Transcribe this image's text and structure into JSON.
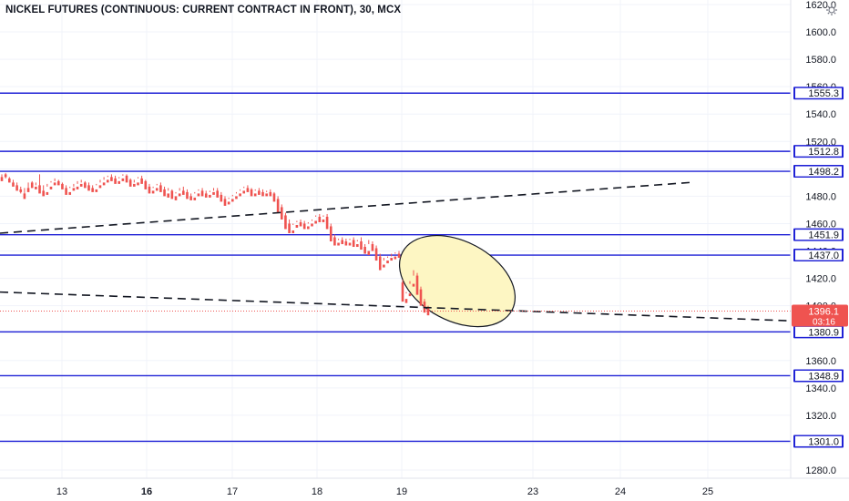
{
  "title": "NICKEL FUTURES (CONTINUOUS: CURRENT CONTRACT IN FRONT), 30, MCX",
  "colors": {
    "up": "#26a69a",
    "down": "#ef5350",
    "level_line": "#1f21d6",
    "ellipse_fill": "#fdf6c3",
    "price_tag": "#ef5350",
    "grid": "#f0f3fa",
    "axis_text": "#131722"
  },
  "chart_data": {
    "type": "candlestick",
    "symbol": "NICKEL FUTURES (CONTINUOUS: CURRENT CONTRACT IN FRONT)",
    "interval": "30",
    "exchange": "MCX",
    "ylim": [
      1275,
      1625
    ],
    "x_ticks": [
      "13",
      "16",
      "17",
      "18",
      "19",
      "23",
      "24",
      "25"
    ],
    "y_ticks": [
      1280.0,
      1300.0,
      1320.0,
      1340.0,
      1360.0,
      1380.0,
      1400.0,
      1420.0,
      1440.0,
      1460.0,
      1480.0,
      1500.0,
      1520.0,
      1540.0,
      1560.0,
      1580.0,
      1600.0,
      1620.0
    ],
    "y_tick_labels": [
      "1280.0",
      "1300.0",
      "1320.0",
      "1340.0",
      "1360.0",
      "1380.0",
      "1400.0",
      "1420.0",
      "1440.0",
      "1460.0",
      "1480.0",
      "1500.0",
      "1520.0",
      "1540.0",
      "1560.0",
      "1580.0",
      "1600.0",
      "1620.0"
    ],
    "horizontal_levels": [
      {
        "label": "1555.3",
        "value": 1555.3
      },
      {
        "label": "1512.8",
        "value": 1512.8
      },
      {
        "label": "1498.2",
        "value": 1498.2
      },
      {
        "label": "1451.9",
        "value": 1451.9
      },
      {
        "label": "1437.0",
        "value": 1437.0
      },
      {
        "label": "1380.9",
        "value": 1380.9
      },
      {
        "label": "1348.9",
        "value": 1348.9
      },
      {
        "label": "1301.0",
        "value": 1301.0
      }
    ],
    "current_price": {
      "label": "1396.1",
      "value": 1396.1,
      "countdown": "03:16"
    },
    "trendlines": [
      {
        "start": {
          "x": "Sep 12",
          "y": 1453
        },
        "end": {
          "x": "Sep 25",
          "y": 1490
        },
        "style": "dashed"
      },
      {
        "start": {
          "x": "Sep 12",
          "y": 1410
        },
        "end": {
          "x": "Sep 26",
          "y": 1389
        },
        "style": "dashed"
      }
    ],
    "highlight_ellipse": {
      "center": {
        "x": "Sep 20",
        "y": 1418
      },
      "x_range": [
        "Sep 19",
        "Sep 22"
      ],
      "y_range": [
        1389,
        1447
      ]
    },
    "candles": [
      [
        1494,
        1496,
        1492,
        1491
      ],
      [
        1496,
        1497,
        1493,
        1494
      ],
      [
        1493,
        1494,
        1490,
        1490
      ],
      [
        1490,
        1492,
        1488,
        1487
      ],
      [
        1488,
        1490,
        1485,
        1484
      ],
      [
        1485,
        1487,
        1482,
        1483
      ],
      [
        1482,
        1486,
        1480,
        1478
      ],
      [
        1486,
        1490,
        1485,
        1483
      ],
      [
        1490,
        1491,
        1487,
        1486
      ],
      [
        1487,
        1490,
        1488,
        1485
      ],
      [
        1488,
        1496,
        1484,
        1482
      ],
      [
        1484,
        1488,
        1483,
        1480
      ],
      [
        1483,
        1489,
        1487,
        1481
      ],
      [
        1487,
        1491,
        1490,
        1485
      ],
      [
        1490,
        1493,
        1491,
        1488
      ],
      [
        1491,
        1492,
        1489,
        1488
      ],
      [
        1489,
        1490,
        1486,
        1485
      ],
      [
        1486,
        1488,
        1483,
        1481
      ],
      [
        1483,
        1487,
        1486,
        1481
      ],
      [
        1486,
        1489,
        1487,
        1484
      ],
      [
        1487,
        1491,
        1489,
        1485
      ],
      [
        1489,
        1492,
        1490,
        1487
      ],
      [
        1490,
        1491,
        1488,
        1486
      ],
      [
        1488,
        1490,
        1486,
        1484
      ],
      [
        1486,
        1488,
        1485,
        1483
      ],
      [
        1485,
        1489,
        1488,
        1483
      ],
      [
        1488,
        1492,
        1490,
        1486
      ],
      [
        1490,
        1494,
        1492,
        1488
      ],
      [
        1492,
        1495,
        1494,
        1490
      ],
      [
        1494,
        1496,
        1493,
        1491
      ],
      [
        1493,
        1495,
        1491,
        1489
      ],
      [
        1491,
        1494,
        1493,
        1489
      ],
      [
        1493,
        1496,
        1495,
        1491
      ],
      [
        1495,
        1496,
        1492,
        1490
      ],
      [
        1492,
        1493,
        1489,
        1487
      ],
      [
        1489,
        1492,
        1490,
        1487
      ],
      [
        1490,
        1494,
        1493,
        1488
      ],
      [
        1493,
        1495,
        1491,
        1489
      ],
      [
        1491,
        1492,
        1487,
        1485
      ],
      [
        1487,
        1489,
        1484,
        1482
      ],
      [
        1484,
        1487,
        1486,
        1482
      ],
      [
        1486,
        1489,
        1488,
        1484
      ],
      [
        1488,
        1490,
        1485,
        1483
      ],
      [
        1485,
        1487,
        1482,
        1480
      ],
      [
        1482,
        1486,
        1484,
        1479
      ],
      [
        1484,
        1485,
        1480,
        1478
      ],
      [
        1480,
        1483,
        1482,
        1477
      ],
      [
        1482,
        1486,
        1484,
        1480
      ],
      [
        1484,
        1487,
        1483,
        1481
      ],
      [
        1483,
        1485,
        1480,
        1478
      ],
      [
        1480,
        1482,
        1479,
        1477
      ],
      [
        1479,
        1483,
        1482,
        1477
      ],
      [
        1482,
        1485,
        1484,
        1480
      ],
      [
        1484,
        1486,
        1482,
        1480
      ],
      [
        1482,
        1484,
        1481,
        1479
      ],
      [
        1481,
        1484,
        1483,
        1479
      ],
      [
        1483,
        1486,
        1484,
        1481
      ],
      [
        1484,
        1486,
        1481,
        1479
      ],
      [
        1481,
        1483,
        1478,
        1476
      ],
      [
        1478,
        1480,
        1476,
        1473
      ],
      [
        1476,
        1479,
        1478,
        1474
      ],
      [
        1478,
        1481,
        1480,
        1476
      ],
      [
        1480,
        1483,
        1482,
        1478
      ],
      [
        1482,
        1485,
        1484,
        1480
      ],
      [
        1484,
        1487,
        1486,
        1482
      ],
      [
        1486,
        1488,
        1485,
        1483
      ],
      [
        1485,
        1486,
        1482,
        1480
      ],
      [
        1482,
        1485,
        1484,
        1480
      ],
      [
        1484,
        1486,
        1483,
        1481
      ],
      [
        1483,
        1485,
        1482,
        1480
      ],
      [
        1482,
        1484,
        1483,
        1480
      ],
      [
        1483,
        1485,
        1482,
        1480
      ],
      [
        1482,
        1483,
        1478,
        1476
      ],
      [
        1478,
        1480,
        1472,
        1468
      ],
      [
        1472,
        1474,
        1466,
        1463
      ],
      [
        1466,
        1468,
        1460,
        1456
      ],
      [
        1460,
        1463,
        1455,
        1453
      ],
      [
        1455,
        1460,
        1459,
        1453
      ],
      [
        1459,
        1462,
        1461,
        1457
      ],
      [
        1461,
        1463,
        1460,
        1458
      ],
      [
        1460,
        1462,
        1458,
        1456
      ],
      [
        1458,
        1461,
        1460,
        1456
      ],
      [
        1460,
        1463,
        1462,
        1458
      ],
      [
        1462,
        1466,
        1465,
        1460
      ],
      [
        1465,
        1467,
        1463,
        1461
      ],
      [
        1463,
        1466,
        1465,
        1461
      ],
      [
        1465,
        1467,
        1458,
        1456
      ],
      [
        1458,
        1460,
        1450,
        1447
      ],
      [
        1450,
        1452,
        1446,
        1444
      ],
      [
        1446,
        1449,
        1448,
        1444
      ],
      [
        1448,
        1450,
        1447,
        1445
      ],
      [
        1447,
        1449,
        1446,
        1444
      ],
      [
        1446,
        1449,
        1448,
        1444
      ],
      [
        1448,
        1450,
        1445,
        1443
      ],
      [
        1445,
        1448,
        1447,
        1443
      ],
      [
        1447,
        1450,
        1443,
        1441
      ],
      [
        1443,
        1445,
        1440,
        1438
      ],
      [
        1440,
        1448,
        1445,
        1437
      ],
      [
        1445,
        1447,
        1442,
        1440
      ],
      [
        1442,
        1444,
        1436,
        1433
      ],
      [
        1436,
        1438,
        1430,
        1426
      ],
      [
        1430,
        1435,
        1433,
        1428
      ],
      [
        1433,
        1436,
        1435,
        1431
      ],
      [
        1435,
        1438,
        1436,
        1433
      ],
      [
        1436,
        1439,
        1438,
        1434
      ],
      [
        1438,
        1440,
        1437,
        1435
      ],
      [
        1417,
        1419,
        1405,
        1403
      ],
      [
        1405,
        1410,
        1409,
        1402
      ],
      [
        1409,
        1418,
        1416,
        1407
      ],
      [
        1416,
        1426,
        1422,
        1414
      ],
      [
        1422,
        1424,
        1412,
        1408
      ],
      [
        1412,
        1414,
        1403,
        1400
      ],
      [
        1403,
        1405,
        1398,
        1395
      ],
      [
        1398,
        1400,
        1396,
        1393
      ]
    ]
  }
}
